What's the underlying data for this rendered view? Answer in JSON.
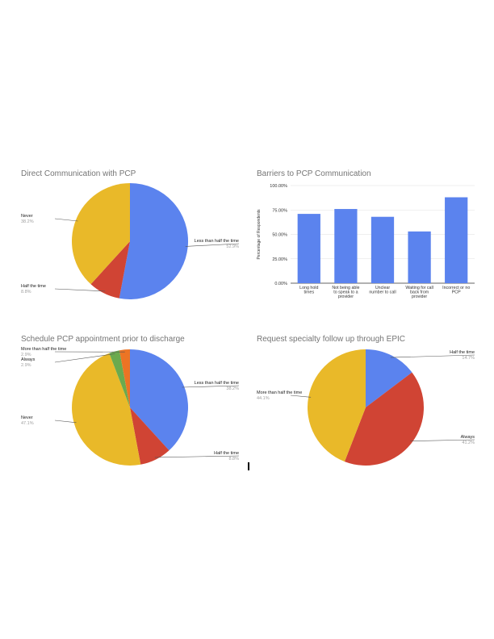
{
  "chart_data": [
    {
      "type": "pie",
      "title": "Direct Communication with PCP",
      "categories": [
        "Less than half the time",
        "Half the time",
        "Never"
      ],
      "values": [
        52.9,
        8.8,
        38.2
      ],
      "value_labels": [
        "52.9%",
        "8.8%",
        "38.2%"
      ],
      "colors": [
        "#5B83EE",
        "#D04434",
        "#E9B929"
      ]
    },
    {
      "type": "bar",
      "title": "Barriers to PCP Communication",
      "ylabel": "Percentage of Respondents",
      "categories": [
        [
          "Long hold",
          "times"
        ],
        [
          "Not being able",
          "to speak to a",
          "provider"
        ],
        [
          "Unclear",
          "number to call"
        ],
        [
          "Waiting for call",
          "back from",
          "provider"
        ],
        [
          "Incorrect or no",
          "PCP"
        ]
      ],
      "values": [
        71,
        76,
        68,
        53,
        88
      ],
      "ylim": [
        0,
        100
      ],
      "yticks": [
        "0.00%",
        "25.00%",
        "50.00%",
        "75.00%",
        "100.00%"
      ],
      "grid": true,
      "color": "#5B83EE"
    },
    {
      "type": "pie",
      "title": "Schedule PCP appointment prior to discharge",
      "categories": [
        "Less than half the time",
        "Half the time",
        "Never",
        "Always",
        "More than half the time"
      ],
      "values": [
        38.2,
        8.8,
        47.1,
        2.9,
        2.9
      ],
      "value_labels": [
        "38.2%",
        "8.8%",
        "47.1%",
        "2.9%",
        "2.9%"
      ],
      "colors": [
        "#5B83EE",
        "#D04434",
        "#E9B929",
        "#6BAA4E",
        "#EC7424"
      ]
    },
    {
      "type": "pie",
      "title": "Request specialty follow up through EPIC",
      "categories": [
        "Half the time",
        "Always",
        "More than half the time"
      ],
      "values": [
        14.7,
        41.2,
        44.1
      ],
      "value_labels": [
        "14.7%",
        "41.2%",
        "44.1%"
      ],
      "colors": [
        "#5B83EE",
        "#D04434",
        "#E9B929"
      ]
    }
  ]
}
